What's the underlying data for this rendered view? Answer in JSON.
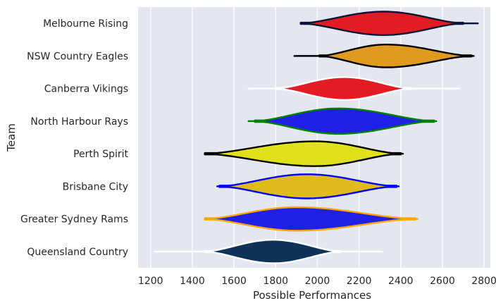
{
  "chart_data": {
    "type": "violin",
    "orientation": "horizontal",
    "xlabel": "Possible Performances",
    "ylabel": "Team",
    "xlim": [
      1140,
      2830
    ],
    "x_ticks": [
      1200,
      1400,
      1600,
      1800,
      2000,
      2200,
      2400,
      2600,
      2800
    ],
    "grid": true,
    "background": "#e5e7f0",
    "gridline_color": "#ffffff",
    "categories": [
      "Melbourne Rising",
      "NSW Country Eagles",
      "Canberra Vikings",
      "North Harbour Rays",
      "Perth Spirit",
      "Brisbane City",
      "Greater Sydney Rams",
      "Queensland Country"
    ],
    "series": [
      {
        "team": "Melbourne Rising",
        "fill": "#e31c23",
        "outline": "#0c1437",
        "min": 1920,
        "max": 2770,
        "body_min": 1920,
        "body_max": 2700,
        "peak": 2320,
        "skew": 0.15,
        "max_half_width": 0.36
      },
      {
        "team": "NSW Country Eagles",
        "fill": "#e09a20",
        "outline": "#000000",
        "min": 1890,
        "max": 2750,
        "body_min": 2010,
        "body_max": 2740,
        "peak": 2330,
        "skew": 0.1,
        "max_half_width": 0.35
      },
      {
        "team": "Canberra Vikings",
        "fill": "#e31c23",
        "outline": "#ffffff",
        "min": 1670,
        "max": 2680,
        "body_min": 1800,
        "body_max": 2450,
        "peak": 2130,
        "skew": 0.05,
        "max_half_width": 0.35
      },
      {
        "team": "North Harbour Rays",
        "fill": "#1f1fe6",
        "outline": "#008000",
        "min": 1670,
        "max": 2570,
        "body_min": 1700,
        "body_max": 2560,
        "peak": 2100,
        "skew": 0.0,
        "max_half_width": 0.39
      },
      {
        "team": "Perth Spirit",
        "fill": "#e0e01c",
        "outline": "#000000",
        "min": 1460,
        "max": 2410,
        "body_min": 1460,
        "body_max": 2400,
        "peak": 1990,
        "skew": 0.0,
        "max_half_width": 0.38
      },
      {
        "team": "Brisbane City",
        "fill": "#e0bb1c",
        "outline": "#0000ff",
        "min": 1520,
        "max": 2390,
        "body_min": 1530,
        "body_max": 2380,
        "peak": 1950,
        "skew": 0.0,
        "max_half_width": 0.37
      },
      {
        "team": "Greater Sydney Rams",
        "fill": "#1f1fe6",
        "outline": "#ffa500",
        "min": 1460,
        "max": 2480,
        "body_min": 1460,
        "body_max": 2470,
        "peak": 1900,
        "skew": 0.0,
        "max_half_width": 0.36
      },
      {
        "team": "Queensland Country",
        "fill": "#0f3358",
        "outline": "#ffffff",
        "min": 1220,
        "max": 2310,
        "body_min": 1460,
        "body_max": 2110,
        "peak": 1790,
        "skew": 0.0,
        "max_half_width": 0.36
      }
    ]
  }
}
